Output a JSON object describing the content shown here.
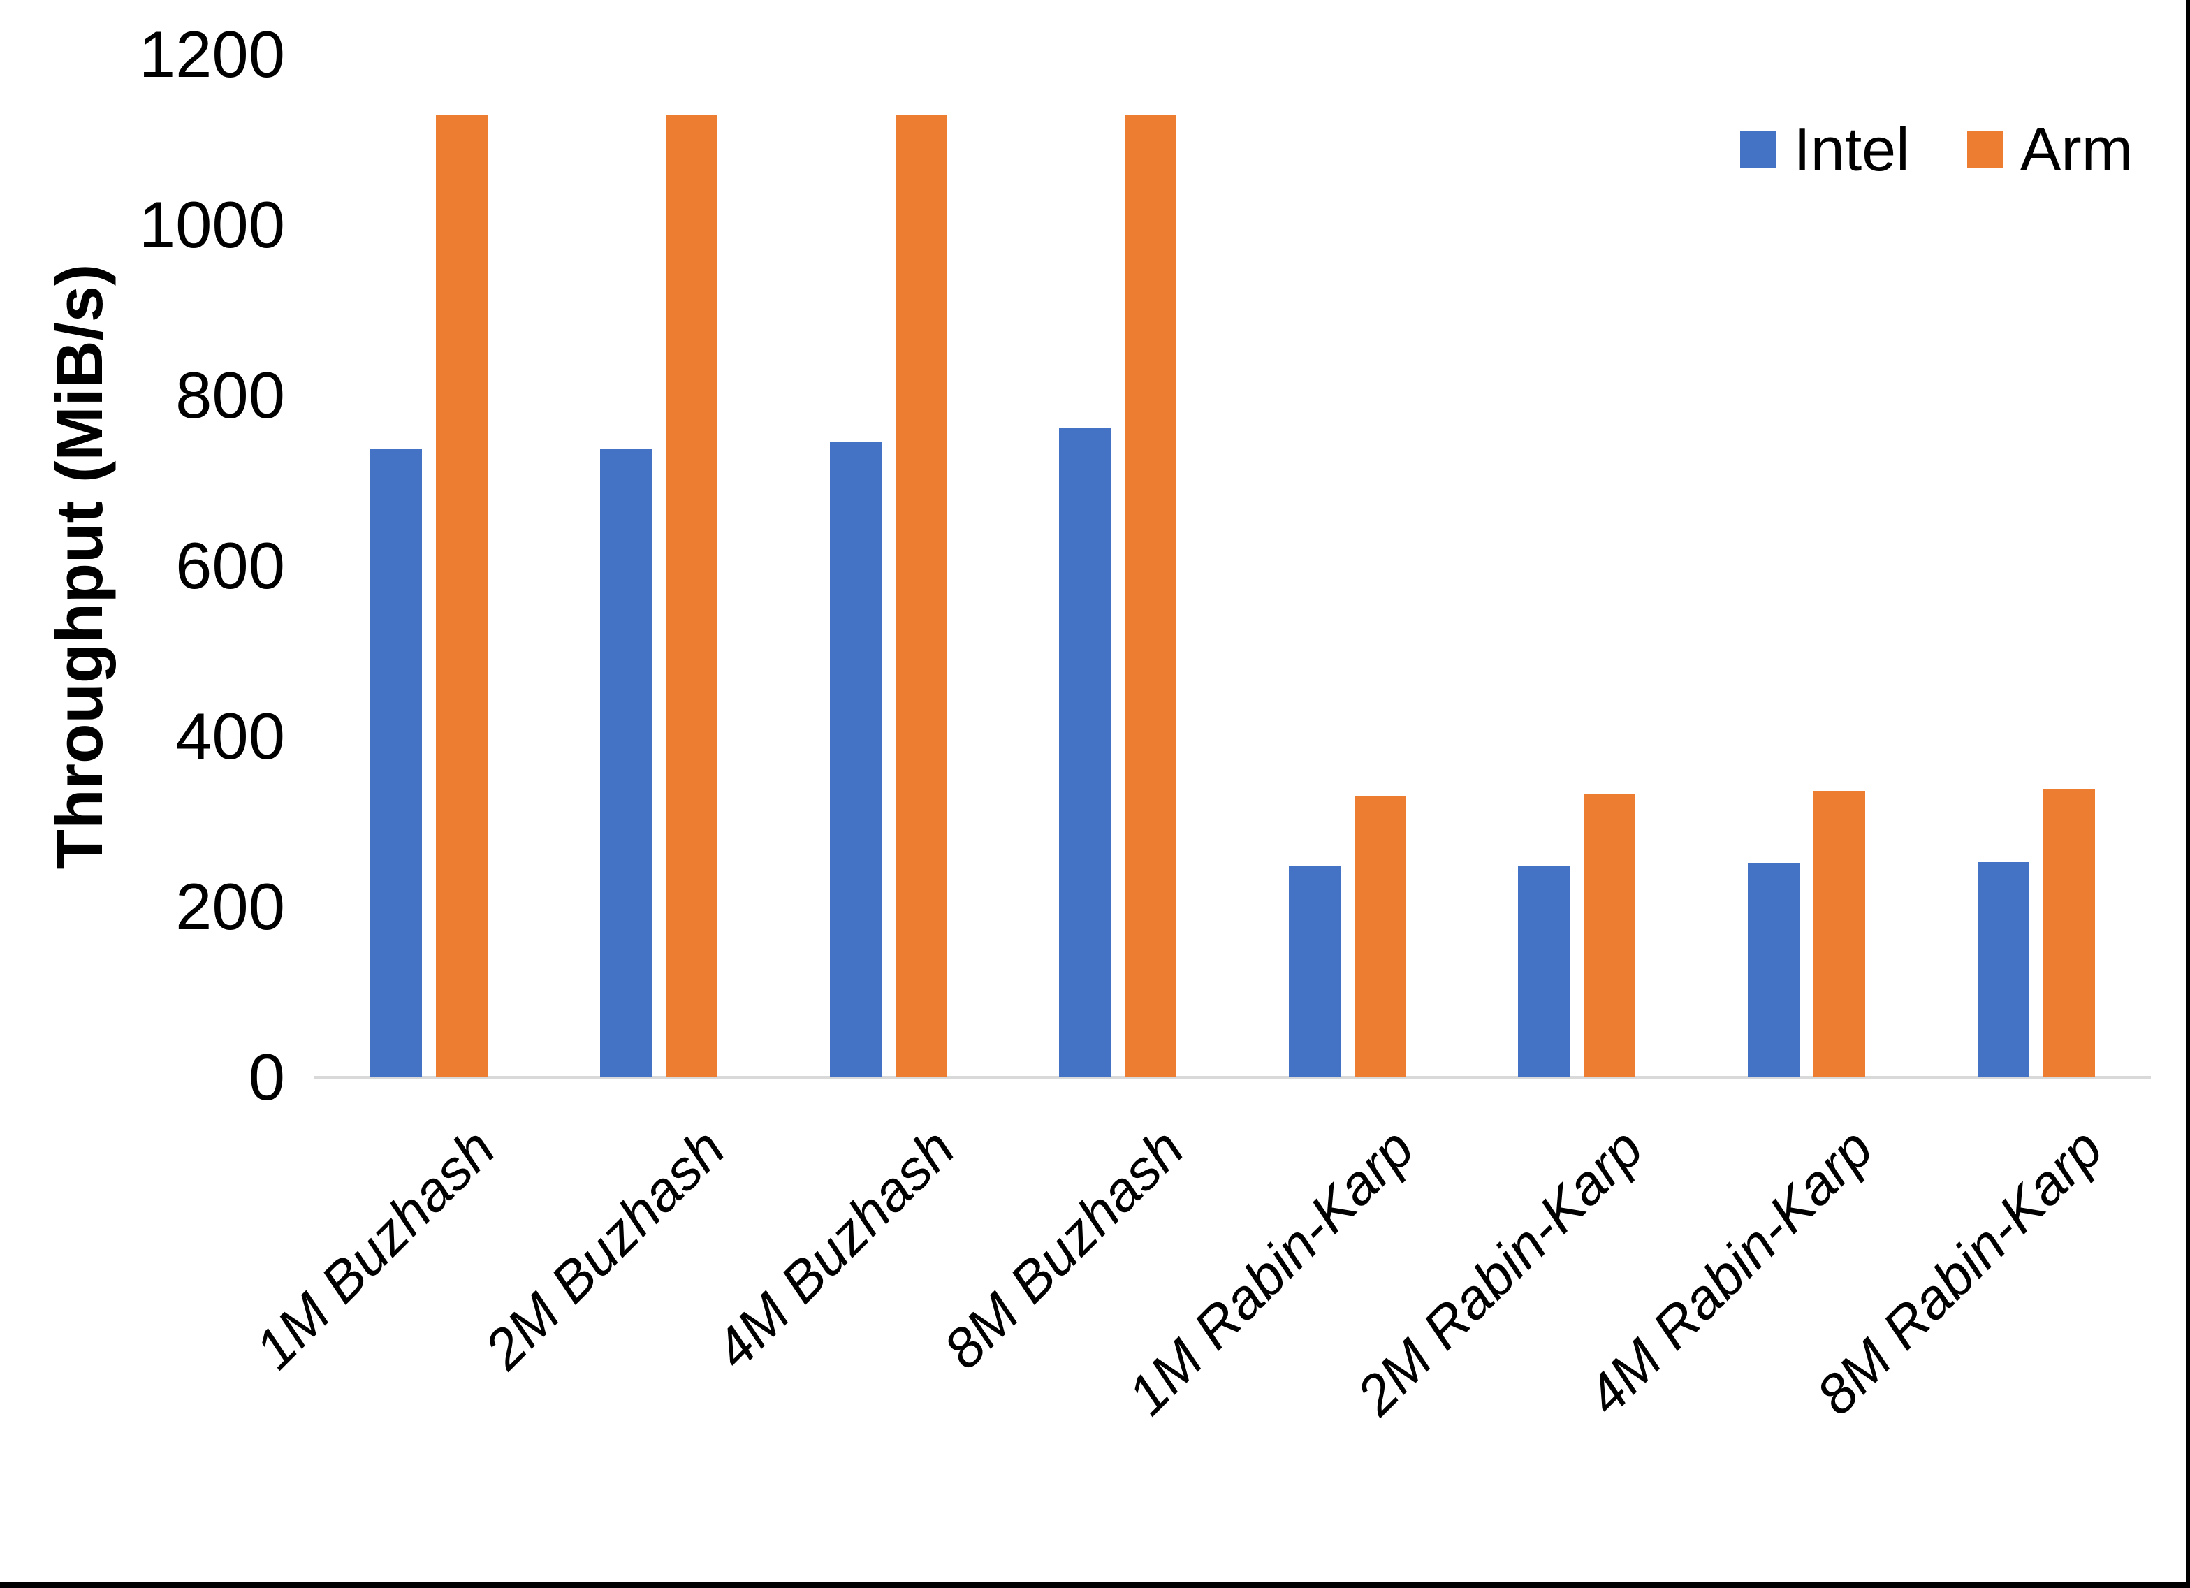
{
  "chart_data": {
    "type": "bar",
    "title": "",
    "xlabel": "",
    "ylabel": "Throughput (MiB/s)",
    "ylim": [
      0,
      1200
    ],
    "ytick_step": 200,
    "yticks": [
      0,
      200,
      400,
      600,
      800,
      1000,
      1200
    ],
    "grid": false,
    "legend_position": "top-right",
    "categories": [
      "1M Buzhash",
      "2M Buzhash",
      "4M Buzhash",
      "8M Buzhash",
      "1M Rabin-Karp",
      "2M Rabin-Karp",
      "4M Rabin-Karp",
      "8M Rabin-Karp"
    ],
    "series": [
      {
        "name": "Intel",
        "color": "#4472C4",
        "values": [
          737,
          737,
          745,
          761,
          247,
          247,
          251,
          252
        ]
      },
      {
        "name": "Arm",
        "color": "#ED7D31",
        "values": [
          1128,
          1128,
          1128,
          1128,
          329,
          331,
          335,
          337
        ]
      }
    ]
  },
  "legend": {
    "items": [
      {
        "label": "Intel",
        "color": "#4472C4"
      },
      {
        "label": "Arm",
        "color": "#ED7D31"
      }
    ]
  },
  "colors": {
    "axis_line": "#D9D9D9",
    "text": "#000000",
    "frame": "#000000",
    "background": "#FFFFFF"
  }
}
